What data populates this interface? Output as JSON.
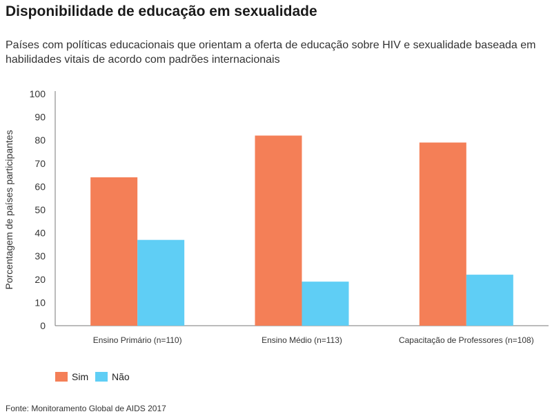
{
  "title": "Disponibilidade de educação em sexualidade",
  "subtitle": "Países com políticas educacionais que orientam a oferta de educação sobre HIV e sexualidade baseada em habilidades vitais de acordo com padrões internacionais",
  "source": "Fonte: Monitoramento Global de AIDS 2017",
  "chart_data": {
    "type": "bar",
    "title": "",
    "xlabel": "",
    "ylabel": "Porcentagem de países participantes",
    "ylim": [
      0,
      100
    ],
    "yticks": [
      0,
      10,
      20,
      30,
      40,
      50,
      60,
      70,
      80,
      90,
      100
    ],
    "grid": false,
    "legend_position": "bottom-left",
    "categories": [
      "Ensino Primário (n=110)",
      "Ensino Médio (n=113)",
      "Capacitação de Professores (n=108)"
    ],
    "series": [
      {
        "name": "Sim",
        "color": "#F47F57",
        "values": [
          64,
          82,
          79
        ]
      },
      {
        "name": "Não",
        "color": "#5FCEF5",
        "values": [
          37,
          19,
          22
        ]
      }
    ]
  }
}
